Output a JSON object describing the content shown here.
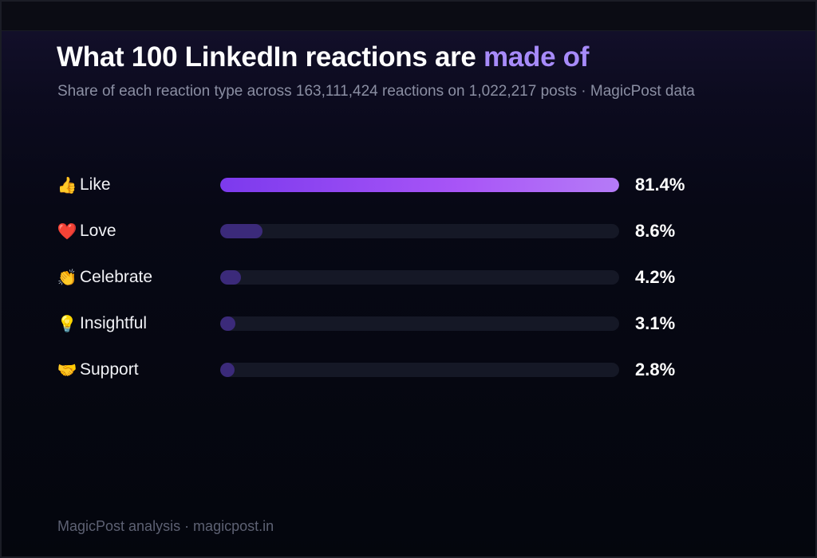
{
  "title": {
    "main": "What 100 LinkedIn reactions are ",
    "accent": "made of"
  },
  "subtitle": "Share of each reaction type across 163,111,424 reactions on 1,022,217 posts · MagicPost data",
  "footer": "MagicPost analysis · magicpost.in",
  "colors": {
    "accent": "#a78bfa",
    "bar_primary_start": "#7c3aed",
    "bar_primary_end": "#b57bf7",
    "bar_secondary": "#3b2a7a",
    "track": "#151826",
    "background": "#05070f"
  },
  "chart_data": {
    "type": "bar",
    "orientation": "horizontal",
    "title": "What 100 LinkedIn reactions are made of",
    "categories": [
      "Like",
      "Love",
      "Celebrate",
      "Insightful",
      "Support"
    ],
    "icons": [
      "👍",
      "❤️",
      "👏",
      "💡",
      "🤝"
    ],
    "values": [
      81.4,
      8.6,
      4.2,
      3.1,
      2.8
    ],
    "value_labels": [
      "81.4%",
      "8.6%",
      "4.2%",
      "3.1%",
      "2.8%"
    ],
    "xlim": [
      0,
      81.4
    ],
    "unit": "%",
    "grid": false,
    "legend": "none"
  }
}
